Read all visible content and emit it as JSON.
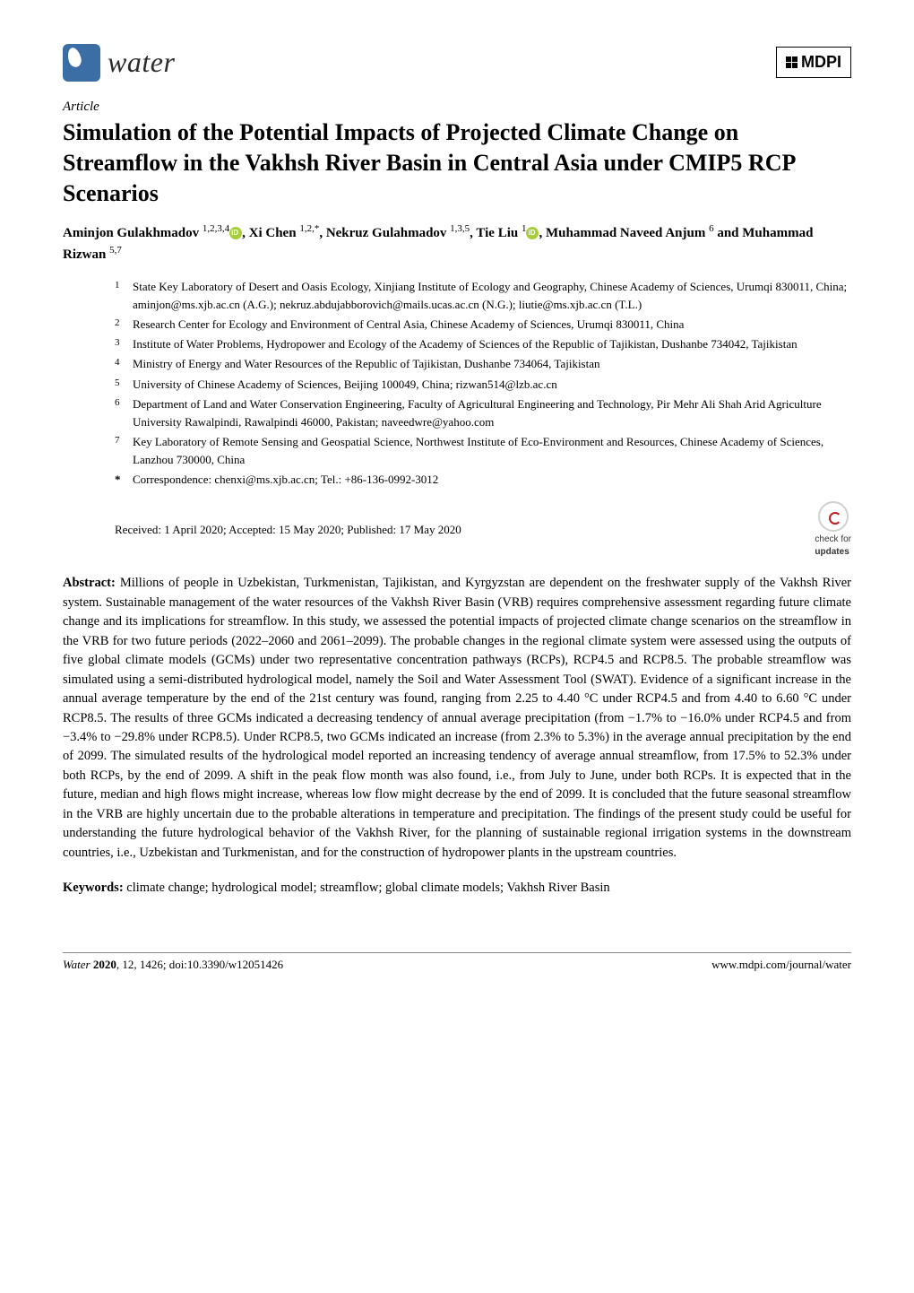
{
  "journal": {
    "name": "water",
    "publisher": "MDPI"
  },
  "article_type": "Article",
  "title": "Simulation of the Potential Impacts of Projected Climate Change on Streamflow in the Vakhsh River Basin in Central Asia under CMIP5 RCP Scenarios",
  "authors_line_1": "Aminjon Gulakhmadov ",
  "author1_sup": "1,2,3,4",
  "authors_line_2": ", Xi Chen ",
  "author2_sup": "1,2,",
  "author2_star": "*",
  "authors_line_3": ", Nekruz Gulahmadov ",
  "author3_sup": "1,3,5",
  "authors_line_4": ", Tie Liu ",
  "author4_sup": "1",
  "authors_line_5": ", Muhammad Naveed Anjum ",
  "author5_sup": "6",
  "authors_line_6": " and Muhammad Rizwan ",
  "author6_sup": "5,7",
  "affiliations": [
    {
      "num": "1",
      "text": "State Key Laboratory of Desert and Oasis Ecology, Xinjiang Institute of Ecology and Geography, Chinese Academy of Sciences, Urumqi 830011, China; aminjon@ms.xjb.ac.cn (A.G.); nekruz.abdujabborovich@mails.ucas.ac.cn (N.G.); liutie@ms.xjb.ac.cn (T.L.)"
    },
    {
      "num": "2",
      "text": "Research Center for Ecology and Environment of Central Asia, Chinese Academy of Sciences, Urumqi 830011, China"
    },
    {
      "num": "3",
      "text": "Institute of Water Problems, Hydropower and Ecology of the Academy of Sciences of the Republic of Tajikistan, Dushanbe 734042, Tajikistan"
    },
    {
      "num": "4",
      "text": "Ministry of Energy and Water Resources of the Republic of Tajikistan, Dushanbe 734064, Tajikistan"
    },
    {
      "num": "5",
      "text": "University of Chinese Academy of Sciences, Beijing 100049, China; rizwan514@lzb.ac.cn"
    },
    {
      "num": "6",
      "text": "Department of Land and Water Conservation Engineering, Faculty of Agricultural Engineering and Technology, Pir Mehr Ali Shah Arid Agriculture University Rawalpindi, Rawalpindi 46000, Pakistan; naveedwre@yahoo.com"
    },
    {
      "num": "7",
      "text": "Key Laboratory of Remote Sensing and Geospatial Science, Northwest Institute of Eco-Environment and Resources, Chinese Academy of Sciences, Lanzhou 730000, China"
    },
    {
      "num": "*",
      "text": "Correspondence: chenxi@ms.xjb.ac.cn; Tel.: +86-136-0992-3012"
    }
  ],
  "received_line": "Received: 1 April 2020; Accepted: 15 May 2020; Published: 17 May 2020",
  "updates_label1": "check for",
  "updates_label2": "updates",
  "abstract_label": "Abstract:",
  "abstract_text": " Millions of people in Uzbekistan, Turkmenistan, Tajikistan, and Kyrgyzstan are dependent on the freshwater supply of the Vakhsh River system. Sustainable management of the water resources of the Vakhsh River Basin (VRB) requires comprehensive assessment regarding future climate change and its implications for streamflow. In this study, we assessed the potential impacts of projected climate change scenarios on the streamflow in the VRB for two future periods (2022–2060 and 2061–2099). The probable changes in the regional climate system were assessed using the outputs of five global climate models (GCMs) under two representative concentration pathways (RCPs), RCP4.5 and RCP8.5. The probable streamflow was simulated using a semi-distributed hydrological model, namely the Soil and Water Assessment Tool (SWAT). Evidence of a significant increase in the annual average temperature by the end of the 21st century was found, ranging from 2.25 to 4.40 °C under RCP4.5 and from 4.40 to 6.60 °C under RCP8.5. The results of three GCMs indicated a decreasing tendency of annual average precipitation (from −1.7% to −16.0% under RCP4.5 and from −3.4% to −29.8% under RCP8.5). Under RCP8.5, two GCMs indicated an increase (from 2.3% to 5.3%) in the average annual precipitation by the end of 2099. The simulated results of the hydrological model reported an increasing tendency of average annual streamflow, from 17.5% to 52.3% under both RCPs, by the end of 2099. A shift in the peak flow month was also found, i.e., from July to June, under both RCPs. It is expected that in the future, median and high flows might increase, whereas low flow might decrease by the end of 2099. It is concluded that the future seasonal streamflow in the VRB are highly uncertain due to the probable alterations in temperature and precipitation. The findings of the present study could be useful for understanding the future hydrological behavior of the Vakhsh River, for the planning of sustainable regional irrigation systems in the downstream countries, i.e., Uzbekistan and Turkmenistan, and for the construction of hydropower plants in the upstream countries.",
  "keywords_label": "Keywords:",
  "keywords_text": " climate change; hydrological model; streamflow; global climate models; Vakhsh River Basin",
  "footer": {
    "left_journal": "Water ",
    "left_year": "2020",
    "left_rest": ", 12, 1426; doi:10.3390/w12051426",
    "right": "www.mdpi.com/journal/water"
  },
  "colors": {
    "logo_bg": "#3a6ea5",
    "orcid": "#a6ce39",
    "text": "#000000",
    "bg": "#ffffff"
  }
}
